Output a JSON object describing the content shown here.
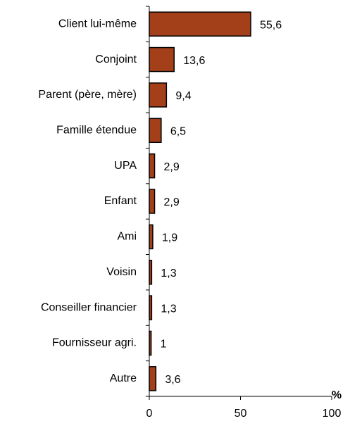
{
  "chart_data": {
    "type": "hbar",
    "categories": [
      "Client lui-même",
      "Conjoint",
      "Parent (père, mère)",
      "Famille étendue",
      "UPA",
      "Enfant",
      "Ami",
      "Voisin",
      "Conseiller financier",
      "Fournisseur agri.",
      "Autre"
    ],
    "values": [
      55.6,
      13.6,
      9.4,
      6.5,
      2.9,
      2.9,
      1.9,
      1.3,
      1.3,
      1,
      3.6
    ],
    "value_labels": [
      "55,6",
      "13,6",
      "9,4",
      "6,5",
      "2,9",
      "2,9",
      "1,9",
      "1,3",
      "1,3",
      "1",
      "3,6"
    ],
    "color": "#a3401a",
    "xlim": [
      0,
      100
    ],
    "xticks": [
      0,
      50,
      100
    ],
    "x_label": "%"
  }
}
